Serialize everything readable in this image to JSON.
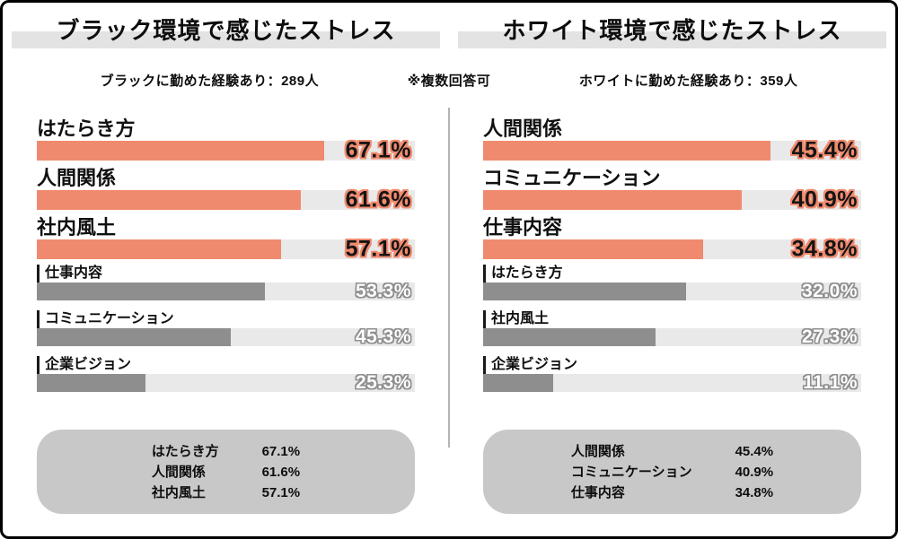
{
  "note": "※複数回答可",
  "colors": {
    "accent": "#F08A6E",
    "muted_bar": "#8E8E8E",
    "track": "#E9E9E9",
    "title_band": "#E3E3E3",
    "summary_box": "#C8C8C8"
  },
  "left_chart": {
    "title": "ブラック環境で感じたストレス",
    "subtitle": "ブラックに勤めた経験あり：289人",
    "bars": [
      {
        "label": "はたらき方",
        "value": 67.1,
        "display": "67.1%",
        "highlight": true
      },
      {
        "label": "人間関係",
        "value": 61.6,
        "display": "61.6%",
        "highlight": true
      },
      {
        "label": "社内風土",
        "value": 57.1,
        "display": "57.1%",
        "highlight": true
      },
      {
        "label": "仕事内容",
        "value": 53.3,
        "display": "53.3%",
        "highlight": false
      },
      {
        "label": "コミュニケーション",
        "value": 45.3,
        "display": "45.3%",
        "highlight": false
      },
      {
        "label": "企業ビジョン",
        "value": 25.3,
        "display": "25.3%",
        "highlight": false
      }
    ],
    "summary": [
      {
        "label": "はたらき方",
        "value": "67.1%"
      },
      {
        "label": "人間関係",
        "value": "61.6%"
      },
      {
        "label": "社内風土",
        "value": "57.1%"
      }
    ]
  },
  "right_chart": {
    "title": "ホワイト環境で感じたストレス",
    "subtitle": "ホワイトに勤めた経験あり：359人",
    "bars": [
      {
        "label": "人間関係",
        "value": 45.4,
        "display": "45.4%",
        "highlight": true
      },
      {
        "label": "コミュニケーション",
        "value": 40.9,
        "display": "40.9%",
        "highlight": true
      },
      {
        "label": "仕事内容",
        "value": 34.8,
        "display": "34.8%",
        "highlight": true
      },
      {
        "label": "はたらき方",
        "value": 32.0,
        "display": "32.0%",
        "highlight": false
      },
      {
        "label": "社内風土",
        "value": 27.3,
        "display": "27.3%",
        "highlight": false
      },
      {
        "label": "企業ビジョン",
        "value": 11.1,
        "display": "11.1%",
        "highlight": false
      }
    ],
    "summary": [
      {
        "label": "人間関係",
        "value": "45.4%"
      },
      {
        "label": "コミュニケーション",
        "value": "40.9%"
      },
      {
        "label": "仕事内容",
        "value": "34.8%"
      }
    ]
  },
  "chart_data": [
    {
      "type": "bar",
      "orientation": "horizontal",
      "title": "ブラック環境で感じたストレス",
      "subtitle": "ブラックに勤めた経験あり：289人",
      "note": "※複数回答可",
      "categories": [
        "はたらき方",
        "人間関係",
        "社内風土",
        "仕事内容",
        "コミュニケーション",
        "企業ビジョン"
      ],
      "values": [
        67.1,
        61.6,
        57.1,
        53.3,
        45.3,
        25.3
      ],
      "unit": "%",
      "xlim": [
        0,
        100
      ],
      "highlighted_categories": [
        "はたらき方",
        "人間関係",
        "社内風土"
      ],
      "legend": "none",
      "grid": false
    },
    {
      "type": "bar",
      "orientation": "horizontal",
      "title": "ホワイト環境で感じたストレス",
      "subtitle": "ホワイトに勤めた経験あり：359人",
      "note": "※複数回答可",
      "categories": [
        "人間関係",
        "コミュニケーション",
        "仕事内容",
        "はたらき方",
        "社内風土",
        "企業ビジョン"
      ],
      "values": [
        45.4,
        40.9,
        34.8,
        32.0,
        27.3,
        11.1
      ],
      "unit": "%",
      "xlim": [
        0,
        100
      ],
      "highlighted_categories": [
        "人間関係",
        "コミュニケーション",
        "仕事内容"
      ],
      "legend": "none",
      "grid": false
    }
  ]
}
